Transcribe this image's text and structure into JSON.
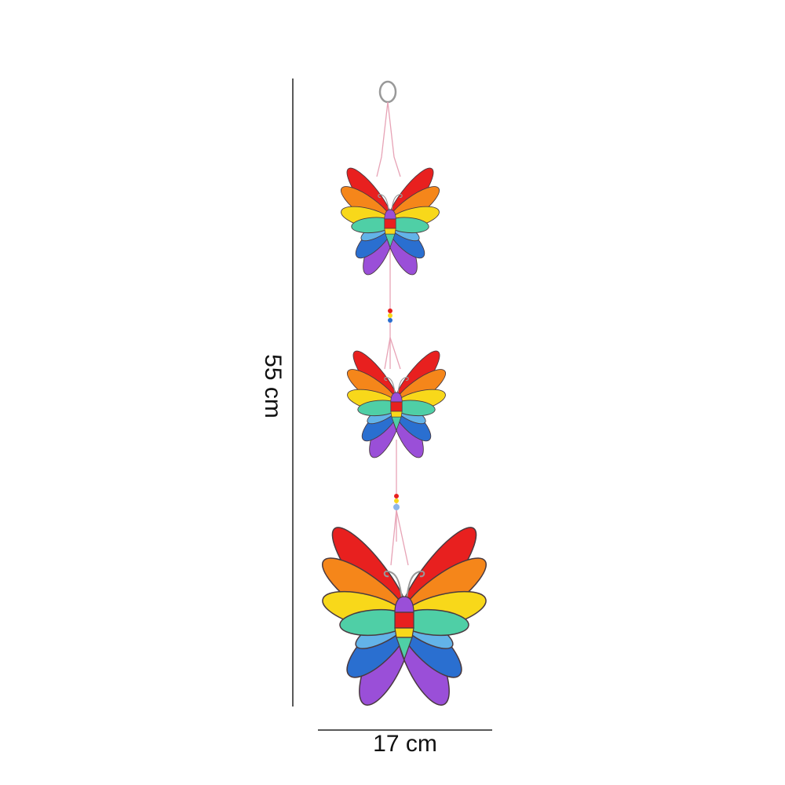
{
  "dimensions": {
    "height_label": "55 cm",
    "width_label": "17 cm"
  },
  "product": {
    "butterfly_count": 3,
    "wing_colors": [
      "#e8201f",
      "#f5861a",
      "#f8d81a",
      "#4fcfa6",
      "#63b3e8",
      "#2a6fd0",
      "#9a4fd8"
    ],
    "string_color": "#e7a3b6"
  }
}
